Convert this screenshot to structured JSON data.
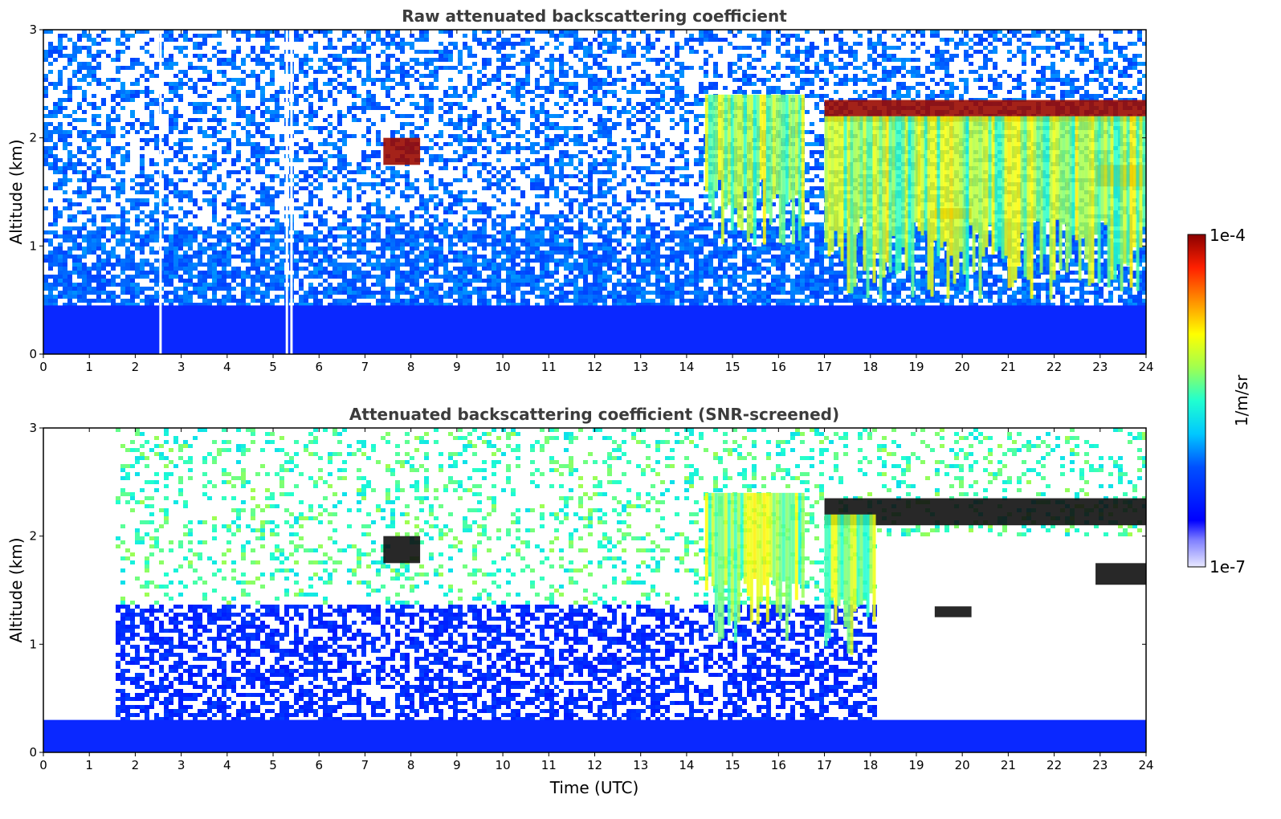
{
  "chart_data": [
    {
      "type": "heatmap",
      "title": "Raw attenuated backscattering coefficient",
      "xlabel": "",
      "ylabel": "Altitude (km)",
      "xlim": [
        0,
        24
      ],
      "ylim": [
        0,
        3
      ],
      "xticks": [
        "0",
        "1",
        "2",
        "3",
        "4",
        "5",
        "6",
        "7",
        "8",
        "9",
        "10",
        "11",
        "12",
        "13",
        "14",
        "15",
        "16",
        "17",
        "18",
        "19",
        "20",
        "21",
        "22",
        "23",
        "24"
      ],
      "yticks": [
        "0",
        "1",
        "2",
        "3"
      ],
      "features": [
        {
          "kind": "cloud_layer",
          "t": [
            17.0,
            24.0
          ],
          "alt_km": [
            2.15,
            2.35
          ]
        },
        {
          "kind": "cloud_patch",
          "t": [
            7.4,
            8.2
          ],
          "alt_km": [
            1.75,
            2.0
          ]
        },
        {
          "kind": "cloud_patch",
          "t": [
            19.4,
            20.2
          ],
          "alt_km": [
            1.25,
            1.35
          ]
        },
        {
          "kind": "cloud_patch",
          "t": [
            22.9,
            24.0
          ],
          "alt_km": [
            1.55,
            1.75
          ]
        },
        {
          "kind": "precipitation",
          "t": [
            17.0,
            24.0
          ],
          "alt_km": [
            0.5,
            2.2
          ]
        },
        {
          "kind": "precipitation",
          "t": [
            14.4,
            16.6
          ],
          "alt_km": [
            1.0,
            2.4
          ]
        },
        {
          "kind": "boundary_layer",
          "t": [
            0,
            24
          ],
          "alt_km": [
            0,
            0.45
          ]
        }
      ],
      "gaps_t": [
        2.55,
        5.3,
        5.4
      ]
    },
    {
      "type": "heatmap",
      "title": "Attenuated backscattering coefficient (SNR-screened)",
      "xlabel": "Time (UTC)",
      "ylabel": "Altitude (km)",
      "xlim": [
        0,
        24
      ],
      "ylim": [
        0,
        3
      ],
      "xticks": [
        "0",
        "1",
        "2",
        "3",
        "4",
        "5",
        "6",
        "7",
        "8",
        "9",
        "10",
        "11",
        "12",
        "13",
        "14",
        "15",
        "16",
        "17",
        "18",
        "19",
        "20",
        "21",
        "22",
        "23",
        "24"
      ],
      "yticks": [
        "0",
        "1",
        "2",
        "3"
      ],
      "features": [
        {
          "kind": "cloud_layer",
          "t": [
            17.0,
            24.0
          ],
          "alt_km": [
            2.1,
            2.35
          ]
        },
        {
          "kind": "cloud_patch",
          "t": [
            7.4,
            8.2
          ],
          "alt_km": [
            1.75,
            2.0
          ]
        },
        {
          "kind": "cloud_patch",
          "t": [
            19.4,
            20.2
          ],
          "alt_km": [
            1.25,
            1.35
          ]
        },
        {
          "kind": "cloud_patch",
          "t": [
            22.9,
            24.0
          ],
          "alt_km": [
            1.55,
            1.75
          ]
        },
        {
          "kind": "precipitation",
          "t": [
            17.0,
            18.1
          ],
          "alt_km": [
            0.9,
            2.2
          ]
        },
        {
          "kind": "precipitation",
          "t": [
            14.4,
            16.6
          ],
          "alt_km": [
            1.0,
            2.4
          ]
        },
        {
          "kind": "boundary_layer",
          "t": [
            0,
            24
          ],
          "alt_km": [
            0,
            0.3
          ]
        },
        {
          "kind": "screened_empty",
          "t": [
            0,
            1.5
          ],
          "alt_km": [
            0.3,
            3.0
          ]
        },
        {
          "kind": "screened_empty",
          "t": [
            18.1,
            24
          ],
          "alt_km": [
            0.3,
            2.0
          ]
        }
      ]
    }
  ],
  "colorbar": {
    "label": "1/m/sr",
    "max_label": "1e-4",
    "min_label": "1e-7",
    "colormap": "jet"
  },
  "colors": {
    "axis": "#000000",
    "title": "#3c3c3c"
  }
}
